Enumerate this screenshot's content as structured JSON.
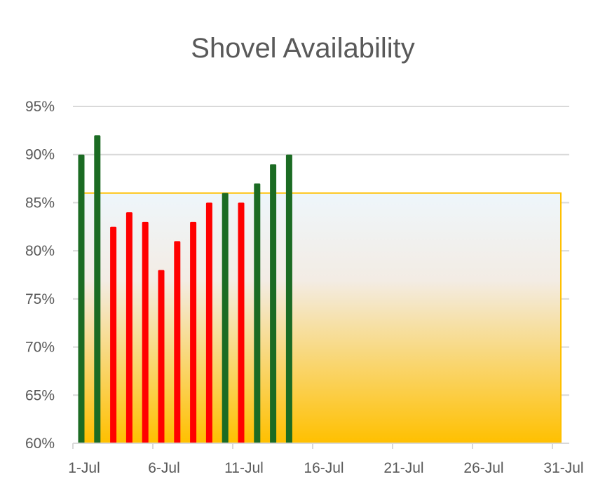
{
  "chart_data": {
    "type": "bar",
    "title": "Shovel Availability",
    "xlabel": "",
    "ylabel": "",
    "ylim": [
      0.6,
      0.95
    ],
    "y_ticks": [
      "60%",
      "65%",
      "70%",
      "75%",
      "80%",
      "85%",
      "90%",
      "95%"
    ],
    "y_tick_values": [
      0.6,
      0.65,
      0.7,
      0.75,
      0.8,
      0.85,
      0.9,
      0.95
    ],
    "x_ticks": [
      "1-Jul",
      "6-Jul",
      "11-Jul",
      "16-Jul",
      "21-Jul",
      "26-Jul",
      "31-Jul"
    ],
    "x_tick_days": [
      1,
      6,
      11,
      16,
      21,
      26,
      31
    ],
    "grid": true,
    "legend": "none",
    "target": {
      "value": 0.86,
      "from_day": 1,
      "to_day": 31,
      "line_color": "#FFC000",
      "fill_top": "#EEF6FB",
      "fill_bottom": "#FFC000"
    },
    "colors": {
      "above_target": "#1B6B23",
      "below_target": "#FF0000",
      "grid": "#D9D9D9"
    },
    "series": [
      {
        "days": [
          1,
          2,
          3,
          4,
          5,
          6,
          7,
          8,
          9,
          10,
          11,
          12,
          13,
          14
        ],
        "categories": [
          "1-Jul",
          "2-Jul",
          "3-Jul",
          "4-Jul",
          "5-Jul",
          "6-Jul",
          "7-Jul",
          "8-Jul",
          "9-Jul",
          "10-Jul",
          "11-Jul",
          "12-Jul",
          "13-Jul",
          "14-Jul"
        ],
        "values": [
          0.9,
          0.92,
          0.825,
          0.84,
          0.83,
          0.78,
          0.81,
          0.83,
          0.85,
          0.86,
          0.85,
          0.87,
          0.89,
          0.9
        ]
      }
    ]
  }
}
